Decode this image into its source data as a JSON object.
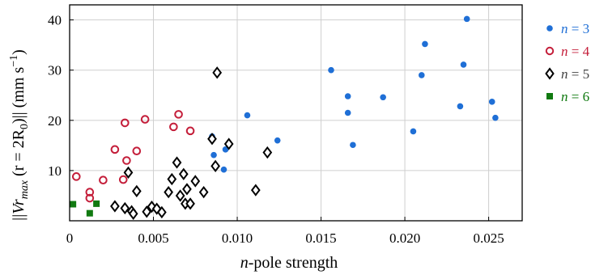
{
  "chart_data": {
    "type": "scatter",
    "title": "",
    "xlabel": "n-pole strength",
    "ylabel": "||Vr_max (r = 2R_0)|| (mm s^-1)",
    "xlim": [
      0,
      0.027
    ],
    "ylim": [
      0,
      43
    ],
    "xticks": [
      0,
      0.005,
      0.01,
      0.015,
      0.02,
      0.025
    ],
    "xtick_labels": [
      "0",
      "0.005",
      "0.010",
      "0.015",
      "0.020",
      "0.025"
    ],
    "yticks": [
      10,
      20,
      30,
      40
    ],
    "ytick_labels": [
      "10",
      "20",
      "30",
      "40"
    ],
    "grid": true,
    "legend_position": "right",
    "series": [
      {
        "name": "n = 3",
        "marker": "filled-circle",
        "color": "#1f6fd6",
        "points": [
          [
            0.0085,
            16.8
          ],
          [
            0.0086,
            13.1
          ],
          [
            0.0092,
            10.2
          ],
          [
            0.0093,
            14.2
          ],
          [
            0.0106,
            21.0
          ],
          [
            0.0124,
            16.0
          ],
          [
            0.0156,
            30.0
          ],
          [
            0.0166,
            24.8
          ],
          [
            0.0166,
            21.5
          ],
          [
            0.0169,
            15.1
          ],
          [
            0.0187,
            24.6
          ],
          [
            0.0205,
            17.8
          ],
          [
            0.021,
            29.0
          ],
          [
            0.0212,
            35.2
          ],
          [
            0.0233,
            22.8
          ],
          [
            0.0235,
            31.1
          ],
          [
            0.0237,
            40.2
          ],
          [
            0.0252,
            23.7
          ],
          [
            0.0254,
            20.5
          ]
        ]
      },
      {
        "name": "n = 4",
        "marker": "open-circle",
        "color": "#c41e3a",
        "points": [
          [
            0.0004,
            8.8
          ],
          [
            0.0012,
            5.7
          ],
          [
            0.0012,
            4.5
          ],
          [
            0.002,
            8.1
          ],
          [
            0.0027,
            14.2
          ],
          [
            0.0032,
            8.2
          ],
          [
            0.0033,
            19.5
          ],
          [
            0.0034,
            12.0
          ],
          [
            0.004,
            13.9
          ],
          [
            0.0045,
            20.2
          ],
          [
            0.0062,
            18.7
          ],
          [
            0.0065,
            21.2
          ],
          [
            0.0072,
            17.9
          ]
        ]
      },
      {
        "name": "n = 5",
        "marker": "open-diamond",
        "color": "#000000",
        "points": [
          [
            0.0027,
            2.9
          ],
          [
            0.0033,
            2.5
          ],
          [
            0.0035,
            9.6
          ],
          [
            0.0037,
            1.9
          ],
          [
            0.0038,
            1.4
          ],
          [
            0.004,
            5.9
          ],
          [
            0.0046,
            1.8
          ],
          [
            0.0049,
            2.8
          ],
          [
            0.0052,
            2.4
          ],
          [
            0.0055,
            1.7
          ],
          [
            0.0059,
            5.7
          ],
          [
            0.0061,
            8.3
          ],
          [
            0.0064,
            11.6
          ],
          [
            0.0066,
            5.0
          ],
          [
            0.0068,
            9.3
          ],
          [
            0.0069,
            3.4
          ],
          [
            0.007,
            6.3
          ],
          [
            0.0072,
            3.4
          ],
          [
            0.0075,
            7.9
          ],
          [
            0.008,
            5.7
          ],
          [
            0.0085,
            16.3
          ],
          [
            0.0087,
            10.9
          ],
          [
            0.0088,
            29.5
          ],
          [
            0.0095,
            15.3
          ],
          [
            0.0111,
            6.1
          ],
          [
            0.0118,
            13.6
          ]
        ]
      },
      {
        "name": "n = 6",
        "marker": "filled-square",
        "color": "#117a11",
        "points": [
          [
            0.0002,
            3.3
          ],
          [
            0.0012,
            1.5
          ],
          [
            0.0016,
            3.4
          ]
        ]
      }
    ]
  },
  "legend": [
    {
      "n": "n",
      "eq": "= 3",
      "color": "#1f6fd6",
      "marker": "filled-circle"
    },
    {
      "n": "n",
      "eq": "= 4",
      "color": "#c41e3a",
      "marker": "open-circle"
    },
    {
      "n": "n",
      "eq": "= 5",
      "color": "#444444",
      "marker": "open-diamond"
    },
    {
      "n": "n",
      "eq": "= 6",
      "color": "#117a11",
      "marker": "filled-square"
    }
  ],
  "axis_labels": {
    "x_italic": "n",
    "x_rest": "-pole strength",
    "y_bars_open": "||",
    "y_V": "Vr",
    "y_sub": "max",
    "y_mid": " (r = 2R",
    "y_sub0": "0",
    "y_close": ")|| (mm s",
    "y_sup": "−1",
    "y_end": ")"
  }
}
